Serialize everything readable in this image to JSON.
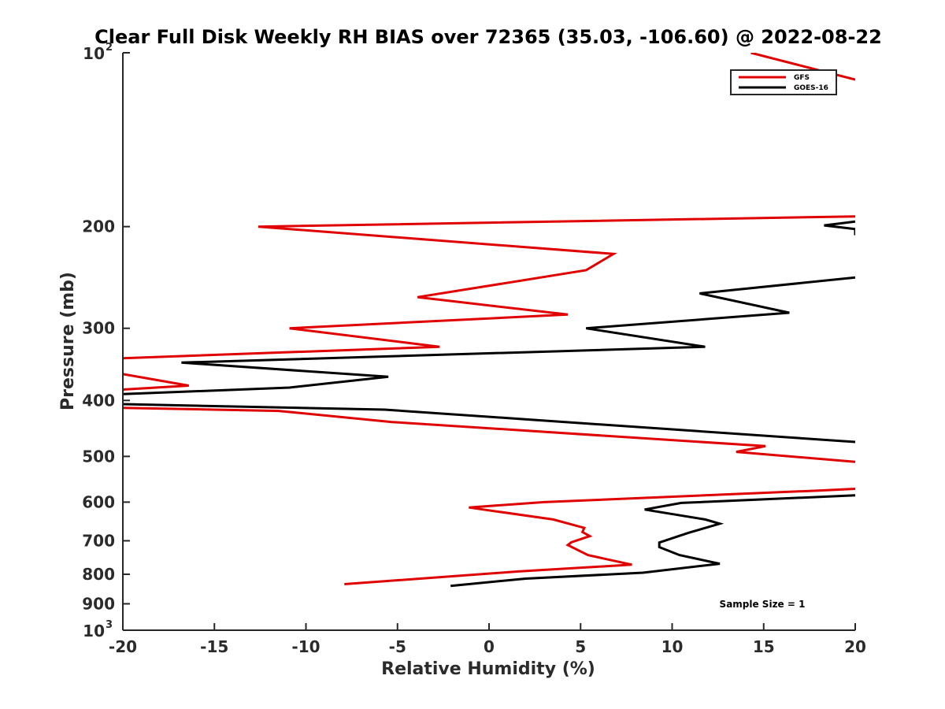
{
  "chart_data": {
    "type": "line",
    "title": "Clear Full Disk Weekly RH BIAS over 72365 (35.03, -106.60) @ 2022-08-22",
    "xlabel": "Relative Humidity (%)",
    "ylabel": "Pressure (mb)",
    "xlim": [
      -20,
      20
    ],
    "ylim": [
      100,
      1000
    ],
    "y_scale": "log",
    "y_reversed": true,
    "grid": false,
    "legend_position": "top-right",
    "x_ticks": [
      "-20",
      "-15",
      "-10",
      "-5",
      "0",
      "5",
      "10",
      "15",
      "20"
    ],
    "y_ticks": [
      {
        "value": 100,
        "label": "10",
        "sup": "2"
      },
      {
        "value": 200,
        "label": "200",
        "sup": ""
      },
      {
        "value": 300,
        "label": "300",
        "sup": ""
      },
      {
        "value": 400,
        "label": "400",
        "sup": ""
      },
      {
        "value": 500,
        "label": "500",
        "sup": ""
      },
      {
        "value": 600,
        "label": "600",
        "sup": ""
      },
      {
        "value": 700,
        "label": "700",
        "sup": ""
      },
      {
        "value": 800,
        "label": "800",
        "sup": ""
      },
      {
        "value": 900,
        "label": "900",
        "sup": ""
      },
      {
        "value": 1000,
        "label": "10",
        "sup": "3"
      }
    ],
    "annotation": "Sample Size = 1",
    "series": [
      {
        "name": "GFS",
        "color": "#e00000",
        "segments": [
          [
            [
              14.3,
              100
            ],
            [
              20,
              111.3
            ]
          ],
          [
            [
              20,
              192
            ],
            [
              -12.6,
              200
            ],
            [
              6.8,
              223
            ],
            [
              5.3,
              238
            ],
            [
              -3.9,
              265
            ],
            [
              4.3,
              284
            ],
            [
              -10.9,
              300
            ],
            [
              -2.7,
              323
            ],
            [
              -20,
              338
            ]
          ],
          [
            [
              -20,
              360
            ],
            [
              -16.4,
              377
            ],
            [
              -20,
              383
            ]
          ],
          [
            [
              -20,
              412
            ],
            [
              -11.5,
              417
            ],
            [
              -5.3,
              436
            ],
            [
              15.1,
              480
            ],
            [
              13.5,
              491
            ],
            [
              20,
              511
            ]
          ],
          [
            [
              20,
              569
            ],
            [
              18,
              573
            ],
            [
              3,
              600
            ],
            [
              -1.1,
              613
            ],
            [
              3.5,
              643
            ],
            [
              5.2,
              665
            ],
            [
              5.1,
              676
            ],
            [
              5.5,
              687
            ],
            [
              4.5,
              704
            ],
            [
              4.3,
              712
            ],
            [
              5.4,
              741
            ],
            [
              7.8,
              770
            ],
            [
              1.6,
              791
            ],
            [
              -7.9,
              832
            ]
          ]
        ]
      },
      {
        "name": "GOES-16",
        "color": "#000000",
        "segments": [
          [
            [
              20,
              196
            ],
            [
              18.3,
              199
            ],
            [
              20,
              202
            ],
            [
              20,
              207
            ]
          ],
          [
            [
              20,
              245
            ],
            [
              11.5,
              261
            ],
            [
              16.4,
              282
            ],
            [
              5.3,
              300
            ],
            [
              11.8,
              323
            ],
            [
              -16.8,
              344
            ],
            [
              -5.5,
              364
            ],
            [
              -10.9,
              380
            ],
            [
              -20,
              390
            ]
          ],
          [
            [
              -20,
              406
            ],
            [
              -5.7,
              415
            ],
            [
              1.9,
              431
            ],
            [
              20,
              472
            ]
          ],
          [
            [
              20,
              584
            ],
            [
              10.5,
              602
            ],
            [
              8.5,
              618
            ],
            [
              11.8,
              643
            ],
            [
              12.6,
              654
            ],
            [
              10.9,
              678
            ],
            [
              9.3,
              705
            ],
            [
              9.3,
              718
            ],
            [
              10.4,
              741
            ],
            [
              12.6,
              767
            ],
            [
              8.4,
              795
            ],
            [
              2,
              814
            ],
            [
              -2.1,
              838
            ]
          ]
        ]
      }
    ]
  }
}
